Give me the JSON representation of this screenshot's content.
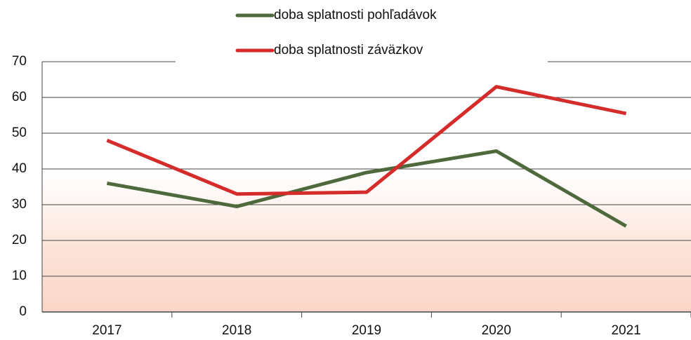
{
  "chart_data": {
    "type": "line",
    "categories": [
      "2017",
      "2018",
      "2019",
      "2020",
      "2021"
    ],
    "series": [
      {
        "name": "doba splatnosti pohľadávok",
        "color": "#4e6a3d",
        "values": [
          36,
          29.5,
          39,
          45,
          24
        ]
      },
      {
        "name": "doba splatnosti záväzkov",
        "color": "#d42b2b",
        "values": [
          48,
          33,
          33.5,
          63,
          55.5
        ]
      }
    ],
    "ylim": [
      0,
      70
    ],
    "yticks": [
      0,
      10,
      20,
      30,
      40,
      50,
      60,
      70
    ],
    "grid": true
  }
}
